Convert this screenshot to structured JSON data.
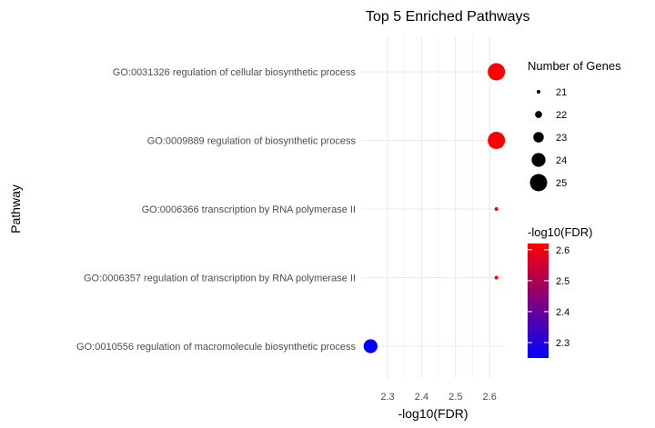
{
  "chart_data": {
    "type": "scatter",
    "title": "Top 5 Enriched Pathways",
    "xlabel": "-log10(FDR)",
    "ylabel": "Pathway",
    "xlim": [
      2.225,
      2.645
    ],
    "x_ticks": [
      "2.3",
      "2.4",
      "2.5",
      "2.6"
    ],
    "x_tick_values": [
      2.3,
      2.4,
      2.5,
      2.6
    ],
    "grid": true,
    "categories": [
      "GO:0031326 regulation of cellular biosynthetic process",
      "GO:0009889 regulation of biosynthetic process",
      "GO:0006366 transcription by RNA polymerase II",
      "GO:0006357 regulation of transcription by RNA polymerase II",
      "GO:0010556 regulation of macromolecule biosynthetic process"
    ],
    "points": [
      {
        "pathway": "GO:0031326 regulation of cellular biosynthetic process",
        "x": 2.62,
        "genes": 25
      },
      {
        "pathway": "GO:0009889 regulation of biosynthetic process",
        "x": 2.62,
        "genes": 25
      },
      {
        "pathway": "GO:0006366 transcription by RNA polymerase II",
        "x": 2.62,
        "genes": 21
      },
      {
        "pathway": "GO:0006357 regulation of transcription by RNA polymerase II",
        "x": 2.62,
        "genes": 21
      },
      {
        "pathway": "GO:0010556 regulation of macromolecule biosynthetic process",
        "x": 2.25,
        "genes": 24
      }
    ],
    "size_legend": {
      "title": "Number of Genes",
      "values": [
        21,
        22,
        23,
        24,
        25
      ],
      "labels": [
        "21",
        "22",
        "23",
        "24",
        "25"
      ]
    },
    "color_legend": {
      "title": "-log10(FDR)",
      "low_color": "#0000ff",
      "high_color": "#ff0000",
      "range": [
        2.25,
        2.62
      ],
      "labels": [
        "2.6",
        "2.5",
        "2.4",
        "2.3"
      ],
      "label_values": [
        2.6,
        2.5,
        2.4,
        2.3
      ]
    },
    "legend_position": "right"
  }
}
